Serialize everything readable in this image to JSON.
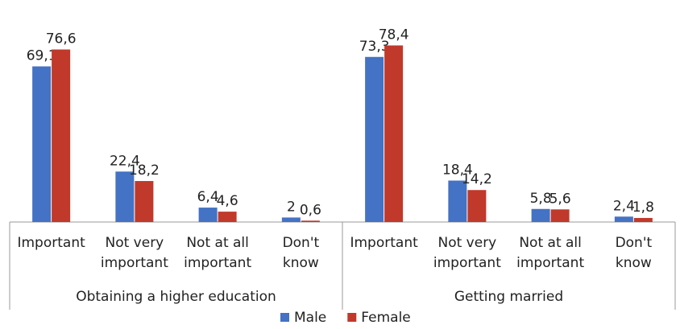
{
  "chart_data": {
    "type": "bar",
    "groups": [
      {
        "name": "Obtaining a higher education",
        "categories": [
          [
            "Important"
          ],
          [
            "Not very",
            "important"
          ],
          [
            "Not at all",
            "important"
          ],
          [
            "Don't",
            "know"
          ]
        ],
        "series": [
          {
            "name": "Male",
            "values": [
              69.1,
              22.4,
              6.4,
              2
            ],
            "labels": [
              "69,1",
              "22,4",
              "6,4",
              "2"
            ]
          },
          {
            "name": "Female",
            "values": [
              76.6,
              18.2,
              4.6,
              0.6
            ],
            "labels": [
              "76,6",
              "18,2",
              "4,6",
              "0,6"
            ]
          }
        ]
      },
      {
        "name": "Getting married",
        "categories": [
          [
            "Important"
          ],
          [
            "Not very",
            "important"
          ],
          [
            "Not at all",
            "important"
          ],
          [
            "Don't",
            "know"
          ]
        ],
        "series": [
          {
            "name": "Male",
            "values": [
              73.3,
              18.4,
              5.8,
              2.4
            ],
            "labels": [
              "73,3",
              "18,4",
              "5,8",
              "2,4"
            ]
          },
          {
            "name": "Female",
            "values": [
              78.4,
              14.2,
              5.6,
              1.8
            ],
            "labels": [
              "78,4",
              "14,2",
              "5,6",
              "1,8"
            ]
          }
        ]
      }
    ],
    "legend": {
      "position": "bottom",
      "items": [
        {
          "name": "Male",
          "color": "#4472C4"
        },
        {
          "name": "Female",
          "color": "#C0392B"
        }
      ]
    },
    "ylim": [
      0,
      85
    ],
    "grid": false
  }
}
